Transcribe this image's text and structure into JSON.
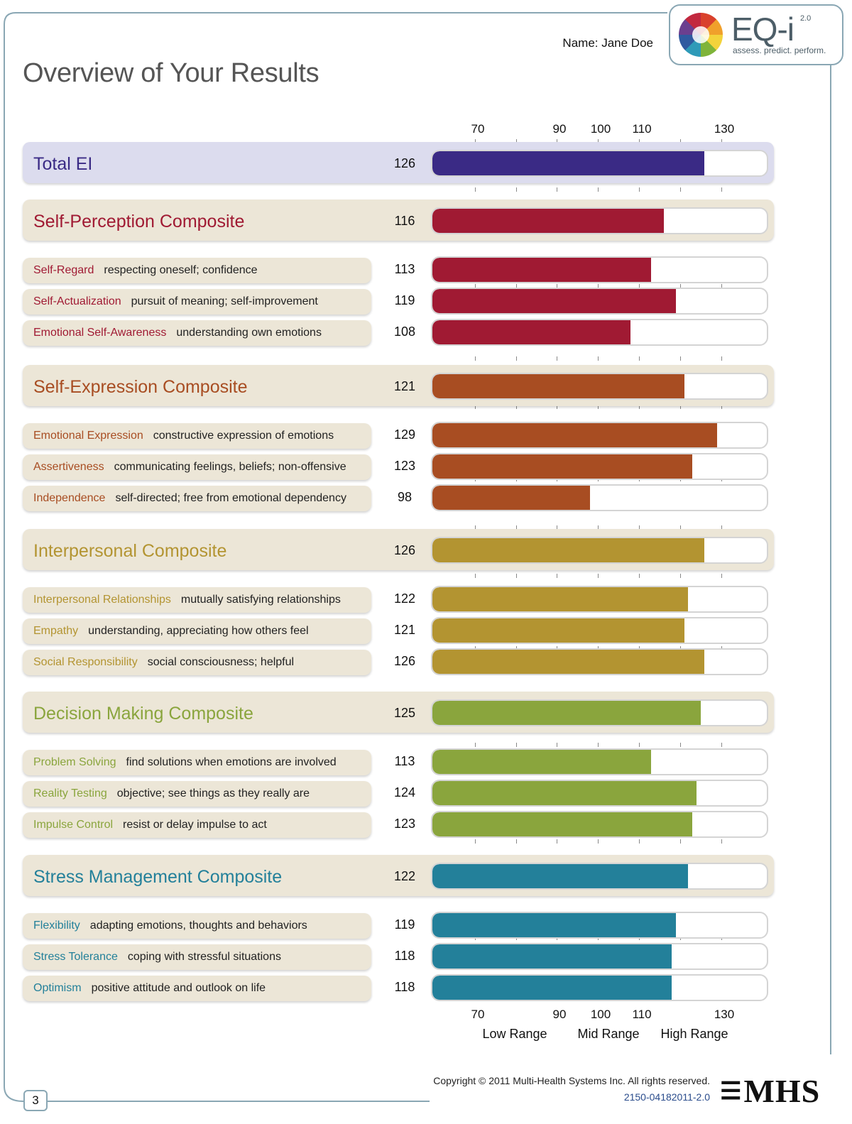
{
  "header": {
    "title": "Overview of Your Results",
    "name_text": "Name: Jane Doe"
  },
  "logo": {
    "brand": "EQ-i",
    "version": "2.0",
    "tagline": "assess. predict. perform."
  },
  "axis": {
    "ticks": [
      "70",
      "90",
      "100",
      "110",
      "130"
    ],
    "range_labels": [
      "Low Range",
      "Mid Range",
      "High Range"
    ]
  },
  "chart_data": {
    "type": "bar",
    "orientation": "horizontal",
    "xlim": [
      60,
      140
    ],
    "tick_values": [
      70,
      90,
      100,
      110,
      130
    ],
    "minor_tick_values": [
      80,
      120
    ],
    "rows": [
      {
        "kind": "total",
        "name": "Total EI",
        "description": "",
        "score": 126,
        "color": "#3a2a85"
      },
      {
        "kind": "composite",
        "name": "Self-Perception Composite",
        "description": "",
        "score": 116,
        "color": "#a01a33"
      },
      {
        "kind": "sub",
        "name": "Self-Regard",
        "description": "respecting oneself; confidence",
        "score": 113,
        "color": "#a01a33"
      },
      {
        "kind": "sub",
        "name": "Self-Actualization",
        "description": "pursuit of meaning; self-improvement",
        "score": 119,
        "color": "#a01a33"
      },
      {
        "kind": "sub",
        "name": "Emotional Self-Awareness",
        "description": "understanding own emotions",
        "score": 108,
        "color": "#a01a33"
      },
      {
        "kind": "composite",
        "name": "Self-Expression Composite",
        "description": "",
        "score": 121,
        "color": "#a84d22"
      },
      {
        "kind": "sub",
        "name": "Emotional Expression",
        "description": "constructive expression of emotions",
        "score": 129,
        "color": "#a84d22"
      },
      {
        "kind": "sub",
        "name": "Assertiveness",
        "description": "communicating feelings, beliefs; non-offensive",
        "score": 123,
        "color": "#a84d22"
      },
      {
        "kind": "sub",
        "name": "Independence",
        "description": "self-directed; free from emotional dependency",
        "score": 98,
        "color": "#a84d22"
      },
      {
        "kind": "composite",
        "name": "Interpersonal Composite",
        "description": "",
        "score": 126,
        "color": "#b39431"
      },
      {
        "kind": "sub",
        "name": "Interpersonal Relationships",
        "description": "mutually satisfying relationships",
        "score": 122,
        "color": "#b39431"
      },
      {
        "kind": "sub",
        "name": "Empathy",
        "description": "understanding, appreciating how others feel",
        "score": 121,
        "color": "#b39431"
      },
      {
        "kind": "sub",
        "name": "Social Responsibility",
        "description": "social consciousness; helpful",
        "score": 126,
        "color": "#b39431"
      },
      {
        "kind": "composite",
        "name": "Decision Making Composite",
        "description": "",
        "score": 125,
        "color": "#8aa53d"
      },
      {
        "kind": "sub",
        "name": "Problem Solving",
        "description": "find solutions when emotions are involved",
        "score": 113,
        "color": "#8aa53d"
      },
      {
        "kind": "sub",
        "name": "Reality Testing",
        "description": "objective; see things as they really are",
        "score": 124,
        "color": "#8aa53d"
      },
      {
        "kind": "sub",
        "name": "Impulse Control",
        "description": "resist or delay impulse to act",
        "score": 123,
        "color": "#8aa53d"
      },
      {
        "kind": "composite",
        "name": "Stress Management Composite",
        "description": "",
        "score": 122,
        "color": "#23809a"
      },
      {
        "kind": "sub",
        "name": "Flexibility",
        "description": "adapting emotions, thoughts and behaviors",
        "score": 119,
        "color": "#23809a"
      },
      {
        "kind": "sub",
        "name": "Stress Tolerance",
        "description": "coping with stressful situations",
        "score": 118,
        "color": "#23809a"
      },
      {
        "kind": "sub",
        "name": "Optimism",
        "description": "positive attitude and outlook on life",
        "score": 118,
        "color": "#23809a"
      }
    ]
  },
  "footer": {
    "page_number": "3",
    "copyright": "Copyright © 2011 Multi-Health Systems Inc. All rights reserved.",
    "form_code": "2150-04182011-2.0",
    "publisher": "MHS"
  }
}
